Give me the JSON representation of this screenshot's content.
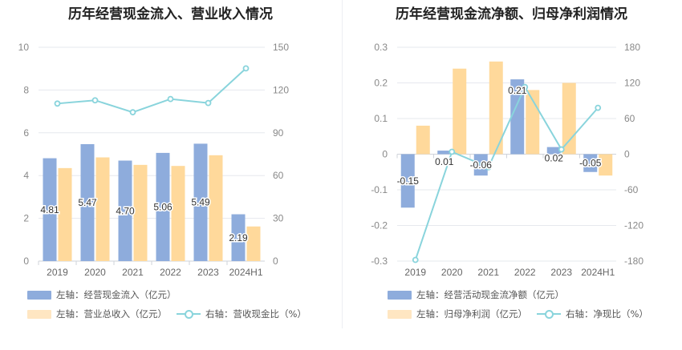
{
  "colors": {
    "bar_left": "#8eacdc",
    "bar_right": "#ffd99b",
    "line": "#89d4dc",
    "grid": "#e6e8ee",
    "axis_text": "#888888"
  },
  "chart_data": [
    {
      "type": "bar",
      "title": "历年经营现金流入、营业收入情况",
      "categories": [
        "2019",
        "2020",
        "2021",
        "2022",
        "2023",
        "2024H1"
      ],
      "left_axis": {
        "ylim": [
          0,
          10
        ],
        "ticks": [
          "0",
          "2",
          "4",
          "6",
          "8",
          "10"
        ]
      },
      "right_axis": {
        "ylim": [
          0,
          150
        ],
        "ticks": [
          "0",
          "30",
          "60",
          "90",
          "120",
          "150"
        ]
      },
      "series": [
        {
          "name": "左轴：经营现金流入（亿元）",
          "axis": "left",
          "values": [
            4.81,
            5.47,
            4.7,
            5.06,
            5.49,
            2.19
          ],
          "labels": [
            "4.81",
            "5.47",
            "4.70",
            "5.06",
            "5.49",
            "2.19"
          ]
        },
        {
          "name": "左轴：营业总收入（亿元）",
          "axis": "left",
          "values": [
            4.35,
            4.85,
            4.5,
            4.45,
            4.95,
            1.62
          ]
        },
        {
          "name": "右轴：营收现金比（%）",
          "axis": "right",
          "type": "line",
          "values": [
            110.5,
            112.8,
            104.4,
            113.7,
            110.9,
            135.2
          ]
        }
      ]
    },
    {
      "type": "bar",
      "title": "历年经营现金流净额、归母净利润情况",
      "categories": [
        "2019",
        "2020",
        "2021",
        "2022",
        "2023",
        "2024H1"
      ],
      "left_axis": {
        "ylim": [
          -0.3,
          0.3
        ],
        "ticks": [
          "-0.3",
          "-0.2",
          "-0.1",
          "0",
          "0.1",
          "0.2",
          "0.3"
        ]
      },
      "right_axis": {
        "ylim": [
          -180,
          180
        ],
        "ticks": [
          "-180",
          "-120",
          "-60",
          "0",
          "60",
          "120",
          "180"
        ]
      },
      "series": [
        {
          "name": "左轴：经营活动现金流净额（亿元）",
          "axis": "left",
          "values": [
            -0.15,
            0.01,
            -0.06,
            0.21,
            0.02,
            -0.05
          ],
          "labels": [
            "-0.15",
            "0.01",
            "-0.06",
            "0.21",
            "0.02",
            "-0.05"
          ]
        },
        {
          "name": "左轴：归母净利润（亿元）",
          "axis": "left",
          "values": [
            0.08,
            0.24,
            0.26,
            0.18,
            0.2,
            -0.06
          ]
        },
        {
          "name": "右轴：净现比（%）",
          "axis": "right",
          "type": "line",
          "values": [
            -178,
            4,
            -22,
            113,
            8,
            78
          ]
        }
      ]
    }
  ]
}
